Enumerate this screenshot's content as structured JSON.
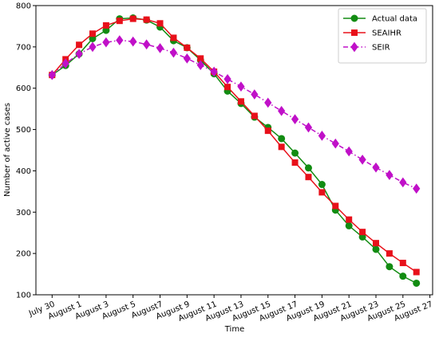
{
  "chart_data": {
    "type": "line",
    "xlabel": "Time",
    "ylabel": "Number of active cases",
    "x": [
      0,
      1,
      2,
      3,
      4,
      5,
      6,
      7,
      8,
      9,
      10,
      11,
      12,
      13,
      14,
      15,
      16,
      17,
      18,
      19,
      20,
      21,
      22,
      23,
      24,
      25,
      26,
      27
    ],
    "xlim": [
      -1.2,
      28.2
    ],
    "xticks": [
      {
        "value": 0,
        "label": "July 30"
      },
      {
        "value": 2,
        "label": "August 1"
      },
      {
        "value": 4,
        "label": "August 3"
      },
      {
        "value": 6,
        "label": "August 5"
      },
      {
        "value": 8,
        "label": "August7"
      },
      {
        "value": 10,
        "label": "August 9"
      },
      {
        "value": 12,
        "label": "August 11"
      },
      {
        "value": 14,
        "label": "August 13"
      },
      {
        "value": 16,
        "label": "August 15"
      },
      {
        "value": 18,
        "label": "August 17"
      },
      {
        "value": 20,
        "label": "August 19"
      },
      {
        "value": 22,
        "label": "August 21"
      },
      {
        "value": 24,
        "label": "August 23"
      },
      {
        "value": 26,
        "label": "August 25"
      },
      {
        "value": 28,
        "label": "August 27"
      }
    ],
    "ylim": [
      100,
      800
    ],
    "yticks": [
      100,
      200,
      300,
      400,
      500,
      600,
      700,
      800
    ],
    "legend": "upper right",
    "series": [
      {
        "name": "Actual data",
        "color": "#128c12",
        "marker": "circle",
        "dash": "solid",
        "values": [
          632,
          655,
          683,
          720,
          740,
          768,
          770,
          765,
          748,
          715,
          698,
          668,
          635,
          593,
          563,
          530,
          505,
          478,
          443,
          407,
          367,
          305,
          267,
          240,
          210,
          168,
          145,
          128
        ]
      },
      {
        "name": "SEAIHR",
        "color": "#e8101a",
        "marker": "square",
        "dash": "solid",
        "values": [
          632,
          670,
          705,
          732,
          752,
          763,
          768,
          766,
          757,
          722,
          698,
          672,
          640,
          603,
          568,
          533,
          497,
          458,
          420,
          385,
          348,
          315,
          282,
          252,
          225,
          200,
          177,
          155
        ]
      },
      {
        "name": "SEIR",
        "color": "#c010c8",
        "marker": "diamond",
        "dash": "dashdot",
        "values": [
          632,
          660,
          683,
          700,
          711,
          716,
          713,
          706,
          697,
          686,
          672,
          656,
          640,
          622,
          604,
          585,
          565,
          545,
          525,
          505,
          485,
          466,
          447,
          427,
          408,
          390,
          372,
          357
        ]
      }
    ]
  }
}
